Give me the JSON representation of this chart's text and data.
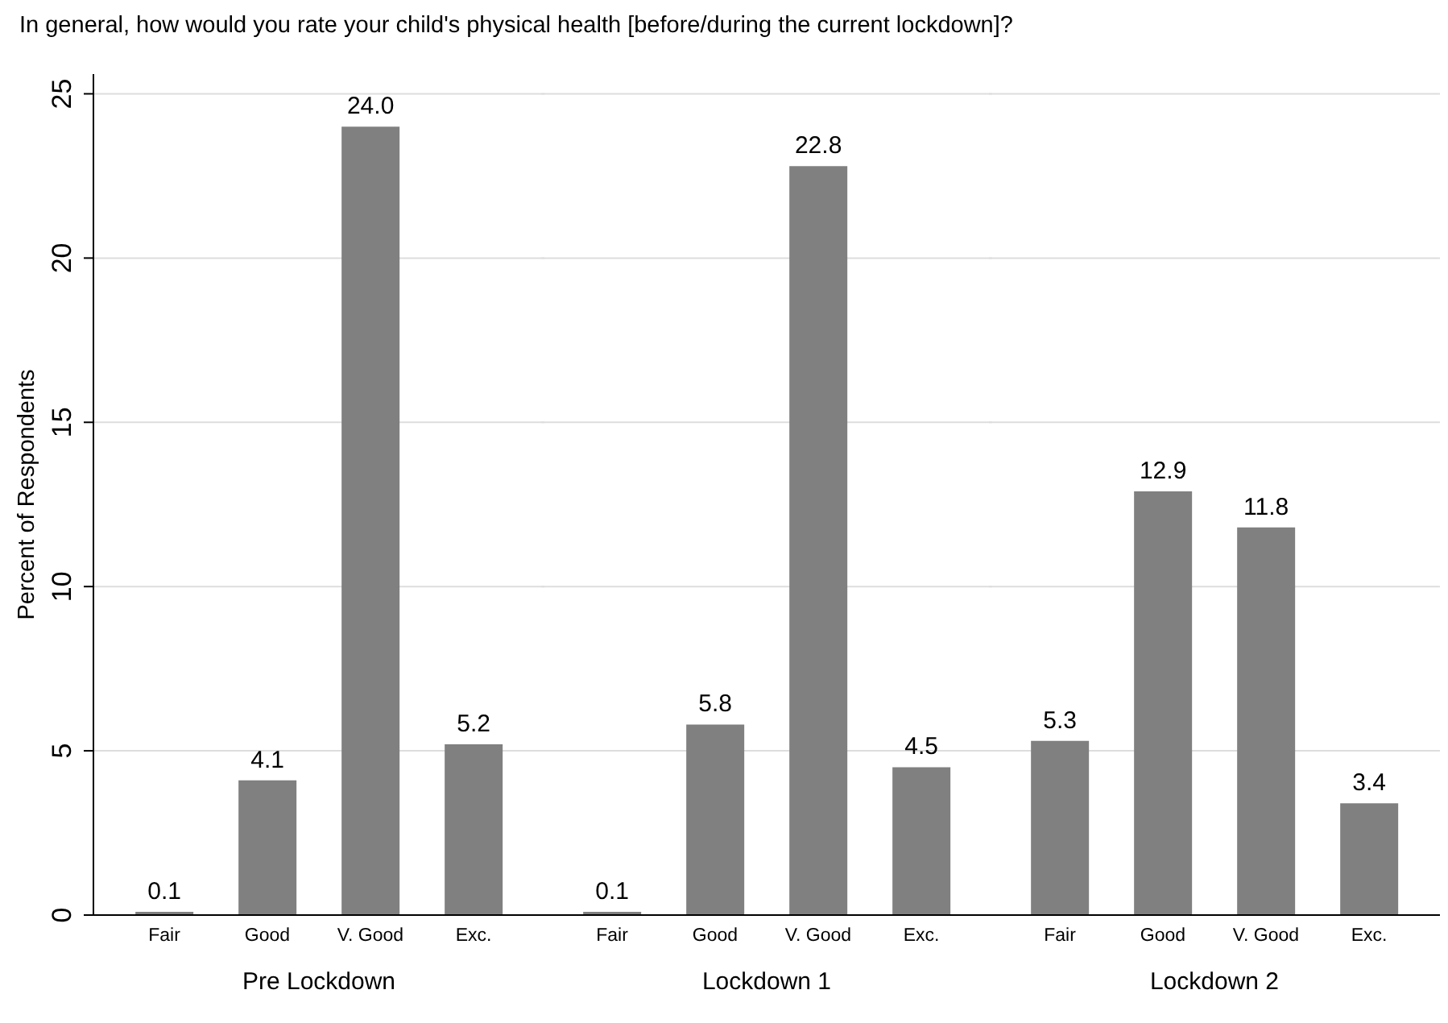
{
  "chart_data": [
    {
      "type": "bar",
      "title": "In general, how would you rate your child's physical health [before/during the current lockdown]?",
      "xlabel": "Pre Lockdown",
      "ylabel": "Percent of Respondents",
      "categories": [
        "Fair",
        "Good",
        "V. Good",
        "Exc."
      ],
      "values": [
        0.1,
        4.1,
        24.0,
        5.2
      ],
      "value_labels": [
        "0.1",
        "4.1",
        "24.0",
        "5.2"
      ],
      "color": "#808080",
      "ylim": [
        0,
        25.6
      ],
      "yticks": [
        0,
        5,
        10,
        15,
        20,
        25
      ],
      "grid": "y"
    },
    {
      "type": "bar",
      "xlabel": "Lockdown 1",
      "categories": [
        "Fair",
        "Good",
        "V. Good",
        "Exc."
      ],
      "values": [
        0.1,
        5.8,
        22.8,
        4.5
      ],
      "value_labels": [
        "0.1",
        "5.8",
        "22.8",
        "4.5"
      ],
      "color": "#808080",
      "yticks": [
        0,
        5,
        10,
        15,
        20,
        25
      ],
      "grid": "y",
      "tick_labels": "x"
    },
    {
      "type": "bar",
      "xlabel": "Lockdown 2",
      "categories": [
        "Fair",
        "Good",
        "V. Good",
        "Exc."
      ],
      "values": [
        5.3,
        12.9,
        11.8,
        3.4
      ],
      "value_labels": [
        "5.3",
        "12.9",
        "11.8",
        "3.4"
      ],
      "color": "#808080",
      "yticks": [
        0,
        5,
        10,
        15,
        20,
        25
      ],
      "grid": "y",
      "tick_labels": "x"
    }
  ]
}
